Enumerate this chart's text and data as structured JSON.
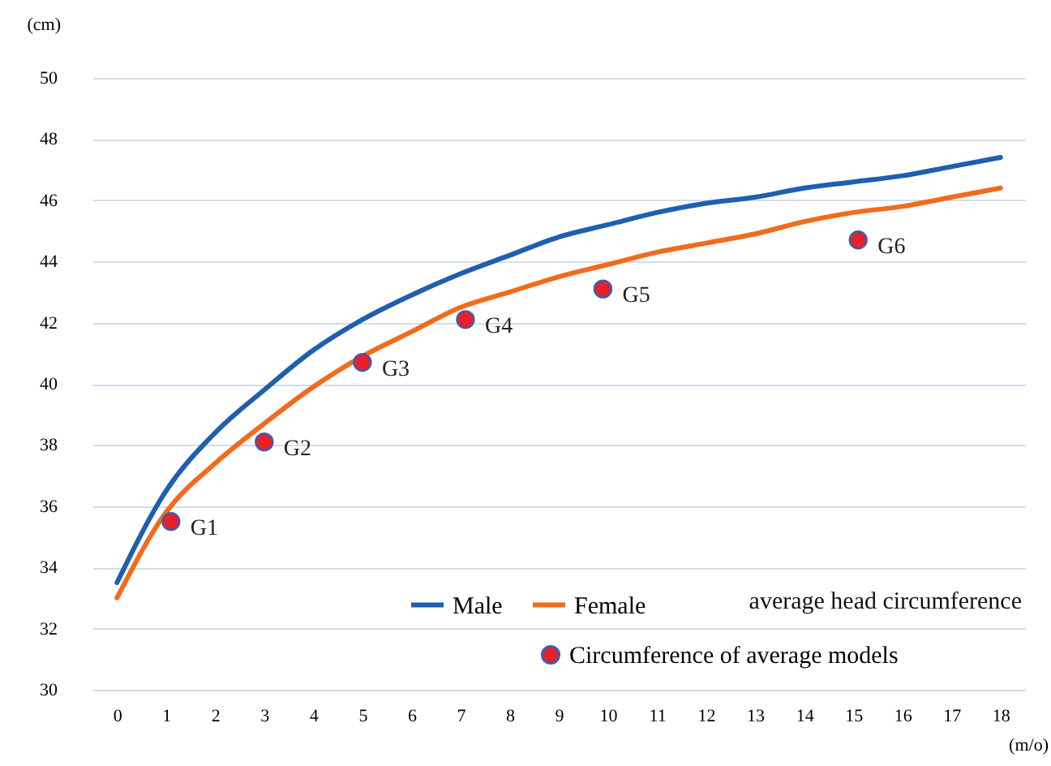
{
  "chart_data": {
    "type": "line",
    "xlabel": "(m/o)",
    "ylabel": "(cm)",
    "x": [
      0,
      1,
      2,
      3,
      4,
      5,
      6,
      7,
      8,
      9,
      10,
      11,
      12,
      13,
      14,
      15,
      16,
      17,
      18
    ],
    "xlim": [
      -0.5,
      18.5
    ],
    "xticks": [
      0,
      1,
      2,
      3,
      4,
      5,
      6,
      7,
      8,
      9,
      10,
      11,
      12,
      13,
      14,
      15,
      16,
      17,
      18
    ],
    "ylim": [
      30,
      50
    ],
    "yticks": [
      30,
      32,
      34,
      36,
      38,
      40,
      42,
      44,
      46,
      48,
      50
    ],
    "grid": "y",
    "legend": "bottom right",
    "marker": "none",
    "line_style": "solid",
    "series": [
      {
        "name": "Male",
        "color": "#1f5fb0",
        "values": [
          33.5,
          36.5,
          38.4,
          39.8,
          41.1,
          42.1,
          42.9,
          43.6,
          44.2,
          44.8,
          45.2,
          45.6,
          45.9,
          46.1,
          46.4,
          46.6,
          46.8,
          47.1,
          47.4
        ]
      },
      {
        "name": "Female",
        "color": "#f26b1d",
        "values": [
          33.0,
          35.8,
          37.4,
          38.7,
          39.9,
          40.9,
          41.7,
          42.5,
          43.0,
          43.5,
          43.9,
          44.3,
          44.6,
          44.9,
          45.3,
          45.6,
          45.8,
          46.1,
          46.4
        ]
      },
      {
        "name": "Circumference of average models",
        "type": "scatter",
        "marker": "circle",
        "color": "#e8202a",
        "x": [
          1.1,
          3.0,
          5.0,
          7.1,
          9.9,
          15.1
        ],
        "values": [
          35.5,
          38.1,
          40.7,
          42.1,
          43.1,
          44.7
        ],
        "value_labels": [
          "G1",
          "G2",
          "G3",
          "G4",
          "G5",
          "G6"
        ]
      }
    ],
    "annotations": [
      "average head circumference"
    ]
  }
}
